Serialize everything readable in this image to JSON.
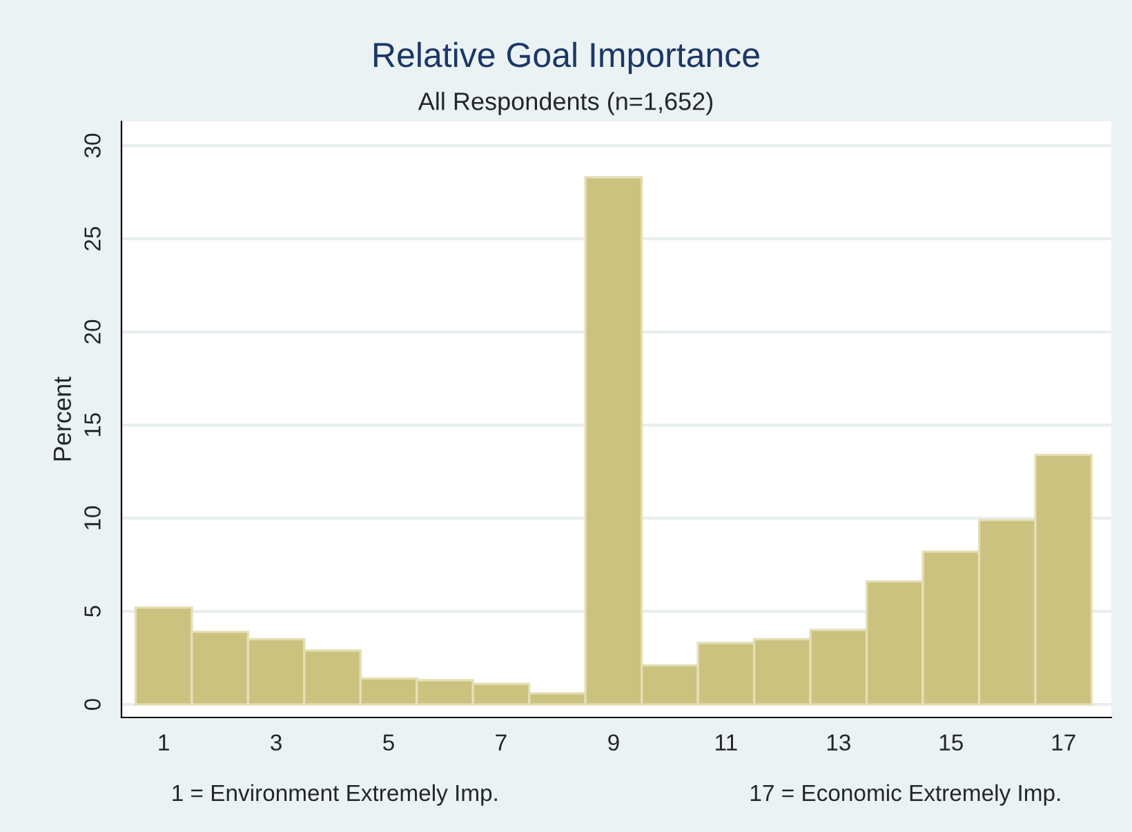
{
  "chart_data": {
    "type": "histogram",
    "title": "Relative Goal Importance",
    "subtitle": "All Respondents (n=1,652)",
    "ylabel": "Percent",
    "bins": [
      0.5,
      1.5,
      2.5,
      3.5,
      4.5,
      5.5,
      6.5,
      7.5,
      8.5,
      9.5,
      10.5,
      11.5,
      12.5,
      13.5,
      14.5,
      15.5,
      16.5,
      17.5
    ],
    "values": [
      5.2,
      3.9,
      3.5,
      2.9,
      1.4,
      1.3,
      1.1,
      0.6,
      28.3,
      2.1,
      3.3,
      3.5,
      4.0,
      6.6,
      8.2,
      9.9,
      13.4
    ],
    "color": "#cbc27f",
    "xlim": [
      0.25,
      17.85
    ],
    "xticks": [
      1,
      3,
      5,
      7,
      9,
      11,
      13,
      15,
      17
    ],
    "ylim": [
      -0.7,
      31.3
    ],
    "yticks": [
      0,
      5,
      10,
      15,
      20,
      25,
      30
    ],
    "grid": "y",
    "annotations": [
      "1 = Environment Extremely Imp.",
      "17 = Economic Extremely Imp."
    ]
  }
}
